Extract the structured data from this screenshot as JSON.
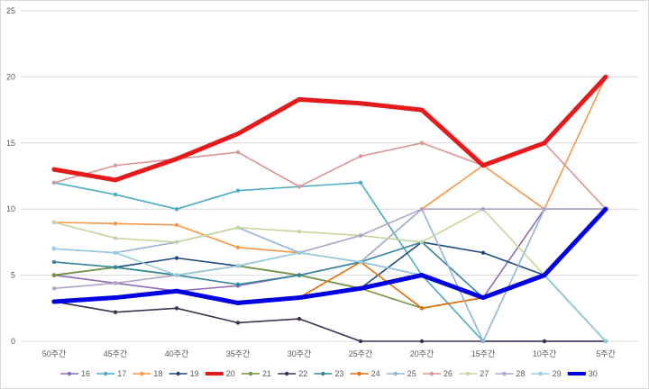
{
  "chart_data": {
    "type": "line",
    "title": "",
    "xlabel": "",
    "ylabel": "",
    "categories": [
      "50주간",
      "45주간",
      "40주간",
      "35주간",
      "30주간",
      "25주간",
      "20주간",
      "15주간",
      "10주간",
      "5주간"
    ],
    "ylim": [
      0,
      25
    ],
    "yticks": [
      0,
      5,
      10,
      15,
      20,
      25
    ],
    "grid": true,
    "legend_position": "bottom",
    "series": [
      {
        "name": "16",
        "color": "#8E6BB8",
        "bold": false,
        "values": [
          5,
          4.4,
          3.8,
          4.2,
          5,
          6,
          5,
          3.3,
          10,
          10
        ]
      },
      {
        "name": "17",
        "color": "#4BACC6",
        "bold": false,
        "values": [
          12,
          11.1,
          10,
          11.4,
          11.7,
          12,
          5,
          0,
          0,
          0
        ]
      },
      {
        "name": "18",
        "color": "#F79646",
        "bold": false,
        "values": [
          9,
          8.9,
          8.8,
          7.1,
          6.7,
          6,
          10,
          13.3,
          10,
          20
        ]
      },
      {
        "name": "19",
        "color": "#1F497D",
        "bold": false,
        "values": [
          5,
          5.6,
          6.3,
          5.7,
          5,
          4,
          7.5,
          6.7,
          5,
          0
        ]
      },
      {
        "name": "20",
        "color": "#E41A1C",
        "bold": true,
        "values": [
          13,
          12.2,
          13.8,
          15.7,
          18.3,
          18,
          17.5,
          13.3,
          15,
          20
        ]
      },
      {
        "name": "21",
        "color": "#77933C",
        "bold": false,
        "values": [
          5,
          5.6,
          5,
          5.7,
          5,
          4,
          2.5,
          3.3,
          5,
          0
        ]
      },
      {
        "name": "22",
        "color": "#403151",
        "bold": false,
        "values": [
          3,
          2.2,
          2.5,
          1.4,
          1.7,
          0,
          0,
          0,
          0,
          0
        ]
      },
      {
        "name": "23",
        "color": "#31859C",
        "bold": false,
        "values": [
          6,
          5.6,
          5,
          4.3,
          5,
          6,
          7.5,
          3.3,
          5,
          0
        ]
      },
      {
        "name": "24",
        "color": "#E46C0A",
        "bold": false,
        "values": [
          3,
          3.3,
          3.8,
          2.9,
          3.3,
          6,
          2.5,
          3.3,
          5,
          10
        ]
      },
      {
        "name": "25",
        "color": "#95B3D7",
        "bold": false,
        "values": [
          7,
          6.7,
          7.5,
          8.6,
          6.7,
          6,
          10,
          0,
          10,
          10
        ]
      },
      {
        "name": "26",
        "color": "#D99694",
        "bold": false,
        "values": [
          12,
          13.3,
          13.8,
          14.3,
          11.7,
          14,
          15,
          13.3,
          15,
          10
        ]
      },
      {
        "name": "27",
        "color": "#C3D69B",
        "bold": false,
        "values": [
          9,
          7.8,
          7.5,
          8.6,
          8.3,
          8,
          7.5,
          10,
          5,
          0
        ]
      },
      {
        "name": "28",
        "color": "#B3A2C7",
        "bold": false,
        "values": [
          4,
          4.4,
          5,
          5.7,
          6.7,
          8,
          10,
          10,
          10,
          10
        ]
      },
      {
        "name": "29",
        "color": "#93CDDD",
        "bold": false,
        "values": [
          7,
          6.7,
          5,
          5.7,
          6.7,
          6,
          5,
          3.3,
          5,
          0
        ]
      },
      {
        "name": "30",
        "color": "#0000E0",
        "bold": true,
        "values": [
          3,
          3.3,
          3.8,
          2.9,
          3.3,
          4,
          5,
          3.3,
          5,
          10
        ]
      }
    ]
  }
}
